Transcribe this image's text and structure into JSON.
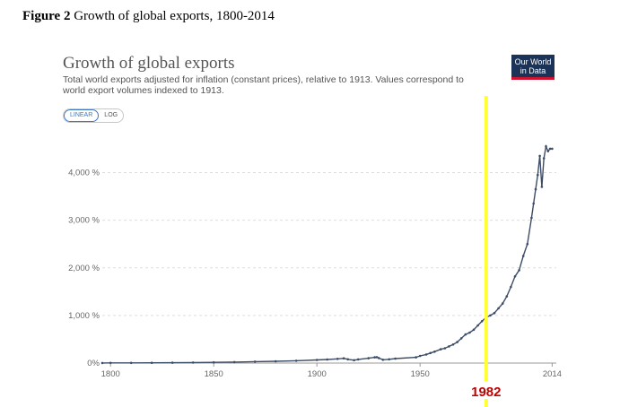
{
  "figure_caption": {
    "number": "Figure 2",
    "text": " Growth of global exports, 1800-2014"
  },
  "header": {
    "title": "Growth of global exports",
    "subtitle": "Total world exports adjusted for inflation (constant prices), relative to 1913. Values correspond to world export volumes indexed to 1913."
  },
  "logo": {
    "line1": "Our World",
    "line2": "in Data"
  },
  "scale_toggle": {
    "options": [
      "LINEAR",
      "LOG"
    ],
    "selected": "LINEAR"
  },
  "colors": {
    "series": "#3d4c66",
    "highlight": "#ffff33",
    "annotation": "#c00000"
  },
  "chart_data": {
    "type": "line",
    "title": "Growth of global exports",
    "xlabel": "",
    "ylabel": "",
    "xlim": [
      1796,
      2016
    ],
    "ylim": [
      0,
      4800
    ],
    "x_ticks": [
      {
        "value": 1800,
        "label": "1800"
      },
      {
        "value": 1850,
        "label": "1850"
      },
      {
        "value": 1900,
        "label": "1900"
      },
      {
        "value": 1950,
        "label": "1950"
      },
      {
        "value": 2014,
        "label": "2014"
      }
    ],
    "y_ticks": [
      {
        "value": 0,
        "label": "0%"
      },
      {
        "value": 1000,
        "label": "1,000 %"
      },
      {
        "value": 2000,
        "label": "2,000 %"
      },
      {
        "value": 3000,
        "label": "3,000 %"
      },
      {
        "value": 4000,
        "label": "4,000 %"
      }
    ],
    "grid": true,
    "series": [
      {
        "x": [
          1796,
          1800,
          1810,
          1820,
          1830,
          1840,
          1850,
          1860,
          1870,
          1880,
          1890,
          1900,
          1905,
          1910,
          1913,
          1915,
          1918,
          1920,
          1925,
          1928,
          1929,
          1930,
          1932,
          1935,
          1938,
          1948,
          1950,
          1953,
          1955,
          1957,
          1960,
          1962,
          1964,
          1966,
          1968,
          1970,
          1972,
          1974,
          1976,
          1978,
          1980,
          1982,
          1984,
          1986,
          1988,
          1990,
          1992,
          1994,
          1996,
          1998,
          2000,
          2002,
          2004,
          2005,
          2006,
          2007,
          2008,
          2009,
          2010,
          2011,
          2012,
          2013,
          2014
        ],
        "y": [
          2,
          3,
          4,
          5,
          7,
          11,
          15,
          21,
          30,
          38,
          48,
          65,
          75,
          88,
          100,
          80,
          60,
          78,
          102,
          120,
          125,
          106,
          70,
          80,
          95,
          120,
          150,
          180,
          210,
          240,
          290,
          310,
          350,
          390,
          440,
          520,
          600,
          640,
          700,
          790,
          880,
          960,
          1000,
          1050,
          1150,
          1250,
          1400,
          1600,
          1820,
          1950,
          2250,
          2500,
          3050,
          3350,
          3650,
          3950,
          4350,
          3700,
          4300,
          4550,
          4450,
          4500,
          4500
        ]
      }
    ],
    "annotations": [
      {
        "x": 1982,
        "label": "1982",
        "style": "vertical-highlight"
      }
    ]
  }
}
